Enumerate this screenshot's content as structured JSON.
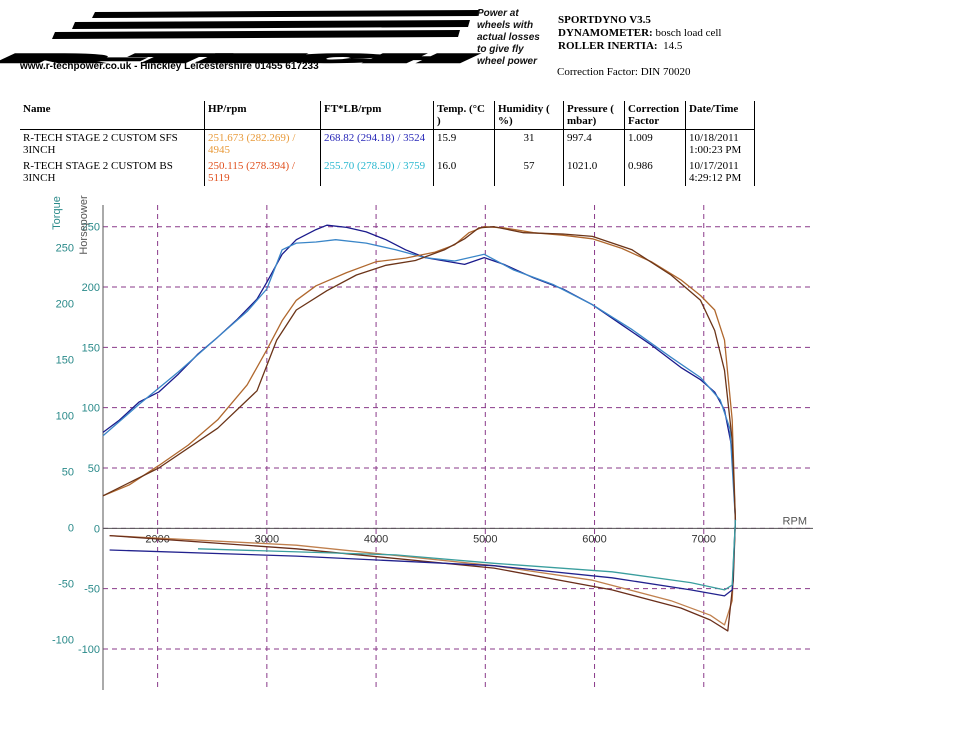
{
  "header": {
    "logo": "R-TECH",
    "website": "www.r-techpower.co.uk - Hinckley Leicestershire 01455 617233",
    "note": "Power at wheels with actual losses to give fly wheel power",
    "software": "SPORTDYNO V3.5",
    "dynamometer_label": "DYNAMOMETER:",
    "dynamometer": "bosch load cell",
    "inertia_label": "ROLLER INERTIA:",
    "inertia": "14.5",
    "correction": "Correction Factor: DIN 70020"
  },
  "table": {
    "columns": [
      "Name",
      "HP/rpm",
      "FT*LB/rpm",
      "Temp. (°C )",
      "Humidity ( %)",
      "Pressure ( mbar)",
      "Correction Factor",
      "Date/Time"
    ],
    "rows": [
      {
        "cells": [
          "R-TECH STAGE 2 CUSTOM SFS 3INCH",
          "251.673 (282.269) / 4945",
          "268.82 (294.18) / 3524",
          "15.9",
          "31",
          "997.4",
          "1.009",
          "10/18/2011 1:00:23 PM"
        ],
        "hp_color": "#e89a3a",
        "torque_color": "#2828b8"
      },
      {
        "cells": [
          "R-TECH STAGE 2 CUSTOM BS 3INCH",
          "250.115 (278.394) / 5119",
          "255.70 (278.50) / 3759",
          "16.0",
          "57",
          "1021.0",
          "0.986",
          "10/17/2011 4:29:12 PM"
        ],
        "hp_color": "#e0501e",
        "torque_color": "#2ab8d0"
      }
    ]
  },
  "chart_data": {
    "type": "line",
    "xlabel": "RPM",
    "ylabel": "Torque",
    "y2label": "Horsepower",
    "xlim": [
      1500,
      8000
    ],
    "ylim": [
      -145,
      288
    ],
    "y2lim": [
      -134,
      268
    ],
    "xticks": [
      2000,
      3000,
      4000,
      5000,
      6000,
      7000
    ],
    "yticks": [
      -100,
      -50,
      0,
      50,
      100,
      150,
      200,
      250
    ],
    "y2ticks": [
      -100,
      -50,
      0,
      50,
      100,
      150,
      200,
      250
    ],
    "grid": true,
    "grid_color": "#8a3a8a",
    "tick_color": "#2a8a8a",
    "series": [
      {
        "color": "#1a1a8c",
        "x": [
          1500,
          1650,
          1830,
          2010,
          2190,
          2370,
          2550,
          2730,
          2910,
          3000,
          3140,
          3270,
          3450,
          3550,
          3730,
          3910,
          4090,
          4270,
          4450,
          4630,
          4810,
          4990,
          5170,
          5440,
          5710,
          5980,
          6250,
          6520,
          6790,
          6970,
          7100,
          7190,
          7260,
          7290
        ],
        "values": [
          85,
          96,
          112,
          121,
          137,
          155,
          170,
          186,
          204,
          219,
          244,
          257,
          266,
          270,
          268,
          264,
          257,
          248,
          241,
          238,
          235,
          241,
          235,
          223,
          213,
          199,
          181,
          163,
          143,
          132,
          121,
          105,
          70,
          7
        ]
      },
      {
        "color": "#3a86c8",
        "x": [
          1500,
          1830,
          2190,
          2550,
          2820,
          3000,
          3140,
          3270,
          3450,
          3630,
          3910,
          4180,
          4450,
          4720,
          4990,
          5260,
          5620,
          5980,
          6340,
          6700,
          6970,
          7150,
          7240,
          7290
        ],
        "values": [
          82,
          110,
          139,
          170,
          193,
          213,
          248,
          254,
          255,
          257,
          254,
          248,
          241,
          238,
          244,
          230,
          217,
          199,
          177,
          152,
          134,
          114,
          88,
          7
        ]
      },
      {
        "color": "#b0682e",
        "axis": "y2",
        "x": [
          1500,
          1740,
          2010,
          2280,
          2550,
          2820,
          3000,
          3140,
          3270,
          3450,
          3730,
          4000,
          4270,
          4540,
          4720,
          4850,
          4990,
          5170,
          5440,
          5710,
          5980,
          6250,
          6520,
          6790,
          6970,
          7100,
          7190,
          7260,
          7290
        ],
        "values": [
          27,
          36,
          52,
          69,
          90,
          119,
          148,
          172,
          189,
          201,
          212,
          221,
          224,
          229,
          235,
          245,
          250,
          249,
          245,
          243,
          240,
          232,
          221,
          206,
          193,
          181,
          156,
          90,
          7
        ]
      },
      {
        "color": "#6b3418",
        "axis": "y2",
        "x": [
          1500,
          2010,
          2550,
          2910,
          3090,
          3270,
          3550,
          3820,
          4090,
          4360,
          4630,
          4810,
          4940,
          5080,
          5350,
          5710,
          5980,
          6340,
          6700,
          6970,
          7100,
          7190,
          7260,
          7290
        ],
        "values": [
          27,
          50,
          83,
          114,
          156,
          181,
          197,
          210,
          218,
          222,
          231,
          240,
          249,
          250,
          245,
          244,
          242,
          231,
          210,
          189,
          164,
          131,
          73,
          7
        ]
      },
      {
        "color": "#c0804e",
        "axis": "y2",
        "x": [
          1560,
          3270,
          5080,
          5980,
          6700,
          7060,
          7190,
          7260,
          7290
        ],
        "values": [
          -6,
          -14,
          -31,
          -43,
          -60,
          -72,
          -80,
          -60,
          7
        ]
      },
      {
        "color": "#6a2e1a",
        "axis": "y2",
        "x": [
          1560,
          3270,
          5080,
          6160,
          6790,
          7060,
          7220,
          7270,
          7290
        ],
        "values": [
          -6,
          -17,
          -33,
          -51,
          -66,
          -76,
          -85,
          -43,
          7
        ]
      },
      {
        "color": "#22228e",
        "axis": "y2",
        "x": [
          1560,
          3270,
          5080,
          6160,
          6880,
          7190,
          7260,
          7290
        ],
        "values": [
          -18,
          -23,
          -31,
          -41,
          -51,
          -56,
          -51,
          7
        ]
      },
      {
        "color": "#3a9e9e",
        "axis": "y2",
        "x": [
          2370,
          4180,
          5080,
          6160,
          6880,
          7190,
          7260,
          7290
        ],
        "values": [
          -17,
          -22,
          -29,
          -36,
          -45,
          -51,
          -47,
          7
        ]
      }
    ]
  }
}
